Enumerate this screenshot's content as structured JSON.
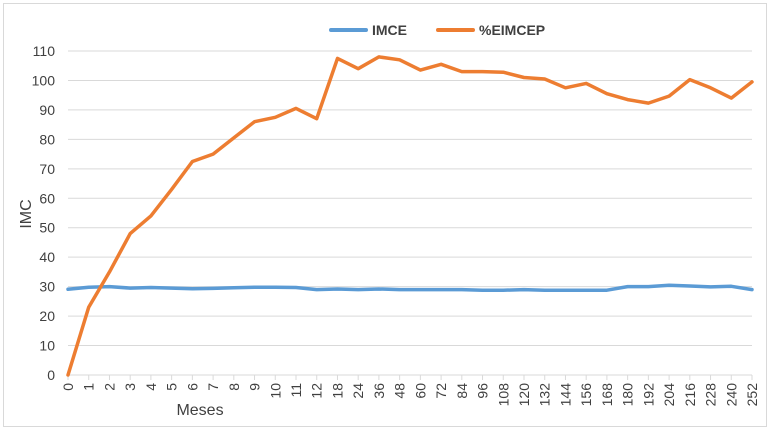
{
  "chart_data": {
    "type": "line",
    "xlabel": "Meses",
    "ylabel": "IMC",
    "ylim": [
      0,
      110
    ],
    "yticks": [
      "0",
      "10",
      "20",
      "30",
      "40",
      "50",
      "60",
      "70",
      "80",
      "90",
      "100",
      "110"
    ],
    "categories": [
      "0",
      "1",
      "2",
      "3",
      "4",
      "5",
      "6",
      "7",
      "8",
      "9",
      "10",
      "11",
      "12",
      "18",
      "24",
      "36",
      "48",
      "60",
      "72",
      "84",
      "96",
      "108",
      "120",
      "132",
      "144",
      "156",
      "168",
      "180",
      "192",
      "204",
      "216",
      "228",
      "240",
      "252"
    ],
    "grid": "horizontal",
    "legend_position": "top",
    "series": [
      {
        "name": "IMCE",
        "color": "#5b9bd5",
        "values": [
          29.1,
          29.8,
          30.0,
          29.5,
          29.7,
          29.5,
          29.3,
          29.4,
          29.6,
          29.8,
          29.8,
          29.7,
          29.0,
          29.2,
          29.0,
          29.2,
          29.0,
          29.0,
          29.0,
          29.0,
          28.8,
          28.8,
          29.0,
          28.8,
          28.8,
          28.8,
          28.8,
          30.0,
          30.0,
          30.5,
          30.2,
          29.9,
          30.1,
          29.0
        ]
      },
      {
        "name": "%EIMCEP",
        "color": "#ed7d31",
        "values": [
          0,
          23,
          35,
          48,
          54,
          63,
          72.5,
          75,
          80.5,
          86,
          87.5,
          90.5,
          87,
          107.5,
          104,
          108,
          107,
          103.5,
          105.5,
          103,
          103,
          102.8,
          101,
          100.5,
          97.5,
          99,
          95.5,
          93.5,
          92.3,
          94.7,
          100.3,
          97.5,
          94,
          99.5
        ]
      }
    ]
  }
}
